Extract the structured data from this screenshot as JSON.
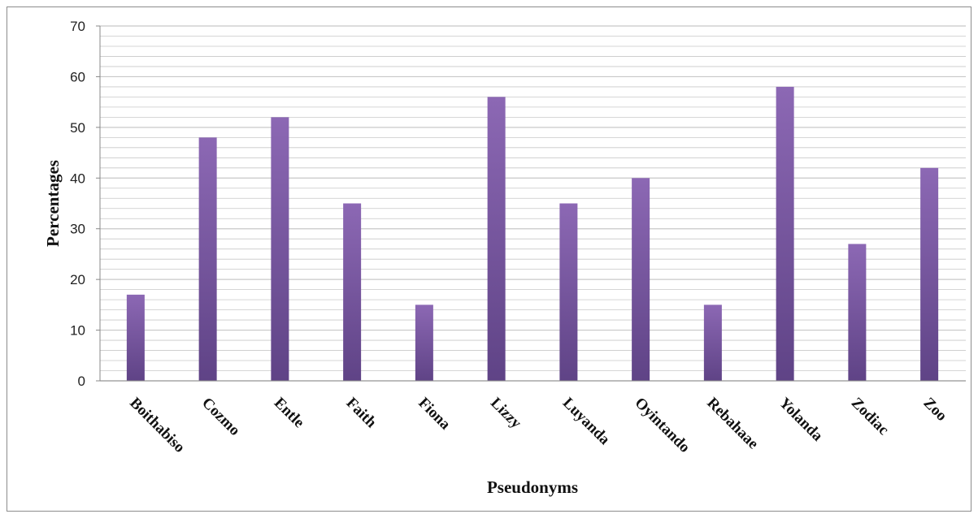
{
  "chart_data": {
    "type": "bar",
    "title": "",
    "xlabel": "Pseudonyms",
    "ylabel": "Percentages",
    "categories": [
      "Boithabiso",
      "Cozmo",
      "Entle",
      "Faith",
      "Fiona",
      "Lizzy",
      "Luyanda",
      "Oyintando",
      "Rebahaae",
      "Yolanda",
      "Zodiac",
      "Zoo"
    ],
    "values": [
      17,
      48,
      52,
      35,
      15,
      56,
      35,
      40,
      15,
      58,
      27,
      42
    ],
    "ylim": [
      0,
      70
    ],
    "yticks": [
      0,
      10,
      20,
      30,
      40,
      50,
      60,
      70
    ],
    "minor_grid_step": 2,
    "grid": true,
    "legend": "none",
    "bar_color_top": "#8c68b4",
    "bar_color_bottom": "#5f4386",
    "grid_color": "#c8c8c8"
  }
}
